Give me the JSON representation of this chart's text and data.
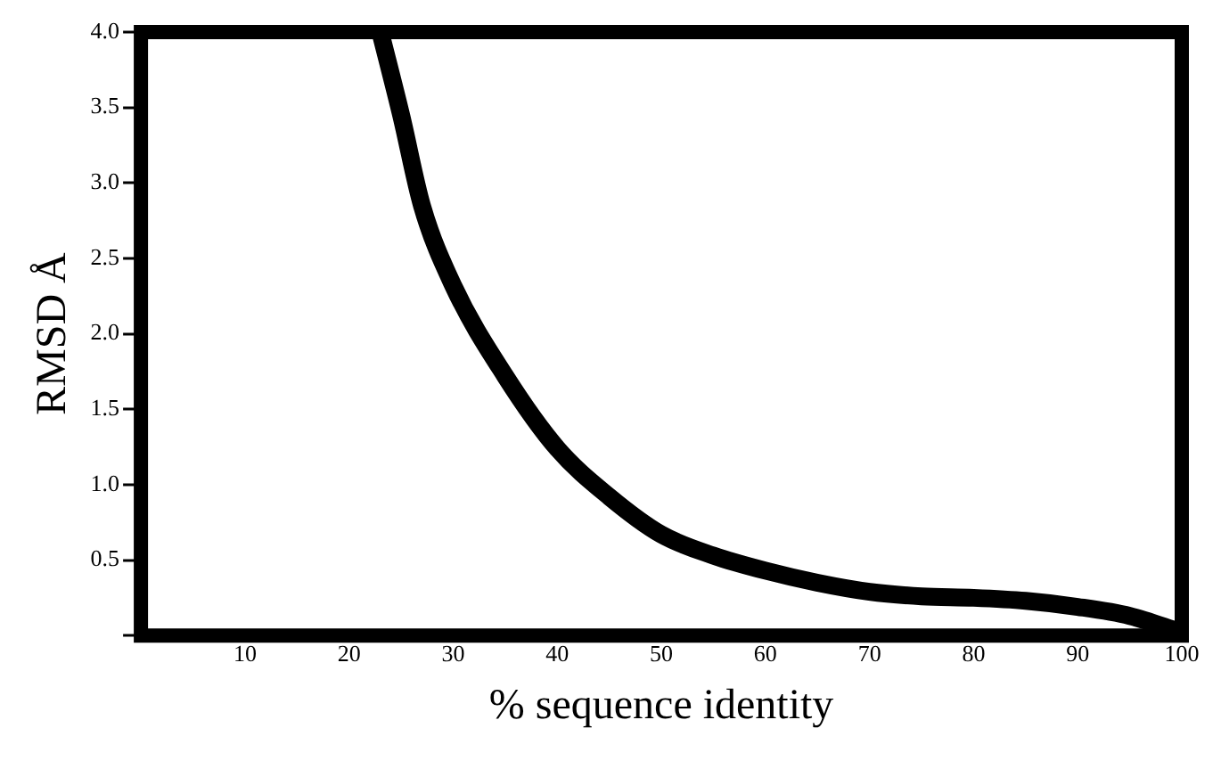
{
  "chart_data": {
    "type": "line",
    "xlabel": "% sequence identity",
    "ylabel": "RMSD Å",
    "xlim": [
      0,
      100
    ],
    "xticks": [
      10,
      20,
      30,
      40,
      50,
      60,
      70,
      80,
      90,
      100
    ],
    "ylim": [
      0,
      4
    ],
    "yticks": [
      {
        "value": 0,
        "label": null
      },
      0.5,
      {
        "value": 1,
        "label": "1.0"
      },
      1.5,
      {
        "value": 2,
        "label": "2.0"
      },
      2.5,
      {
        "value": 3,
        "label": "3.0"
      },
      3.5,
      {
        "value": 4,
        "label": "4.0"
      }
    ],
    "grid": false,
    "legend": false,
    "marker": "none",
    "line_style": "solid",
    "series": [
      {
        "color": "#000000",
        "x": [
          23,
          25,
          27,
          30,
          35,
          40,
          45,
          50,
          55,
          60,
          65,
          70,
          75,
          80,
          85,
          90,
          95,
          100
        ],
        "values": [
          4.0,
          3.45,
          2.85,
          2.32,
          1.72,
          1.24,
          0.92,
          0.67,
          0.53,
          0.43,
          0.35,
          0.29,
          0.26,
          0.25,
          0.23,
          0.19,
          0.13,
          0.02
        ]
      }
    ]
  }
}
